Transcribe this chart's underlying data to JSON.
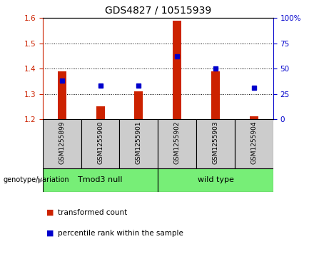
{
  "title": "GDS4827 / 10515939",
  "samples": [
    "GSM1255899",
    "GSM1255900",
    "GSM1255901",
    "GSM1255902",
    "GSM1255903",
    "GSM1255904"
  ],
  "bar_values": [
    1.39,
    1.25,
    1.31,
    1.59,
    1.39,
    1.21
  ],
  "bar_base": 1.2,
  "percentile_values": [
    38,
    33,
    33,
    62,
    50,
    31
  ],
  "ylim_left": [
    1.2,
    1.6
  ],
  "ylim_right": [
    0,
    100
  ],
  "yticks_left": [
    1.2,
    1.3,
    1.4,
    1.5,
    1.6
  ],
  "yticks_right": [
    0,
    25,
    50,
    75,
    100
  ],
  "ytick_labels_right": [
    "0",
    "25",
    "50",
    "75",
    "100%"
  ],
  "bar_color": "#cc2200",
  "dot_color": "#0000cc",
  "group1_label": "Tmod3 null",
  "group2_label": "wild type",
  "group1_indices": [
    0,
    1,
    2
  ],
  "group2_indices": [
    3,
    4,
    5
  ],
  "group_color": "#77ee77",
  "cell_color": "#cccccc",
  "genotype_label": "genotype/variation",
  "legend1": "transformed count",
  "legend2": "percentile rank within the sample",
  "title_fontsize": 10,
  "tick_fontsize": 7.5,
  "sample_fontsize": 6.5,
  "group_fontsize": 8,
  "legend_fontsize": 7.5
}
